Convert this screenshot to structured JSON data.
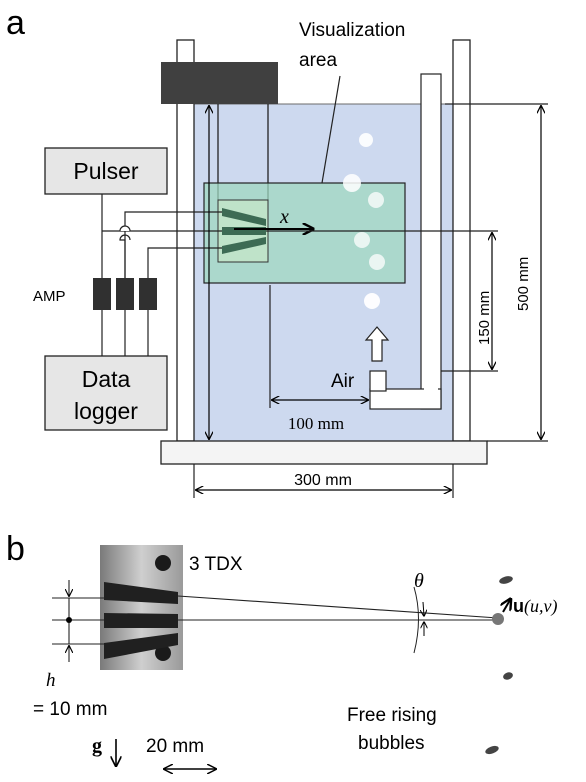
{
  "panel_a": {
    "letter": "a",
    "visualization_label_line1": "Visualization",
    "visualization_label_line2": "area",
    "pulser": "Pulser",
    "amp": "AMP",
    "data_logger_line1": "Data",
    "data_logger_line2": "logger",
    "x_axis": "x",
    "air": "Air",
    "dim_100": "100 mm",
    "dim_150": "150 mm",
    "dim_500": "500 mm",
    "dim_300": "300 mm"
  },
  "panel_b": {
    "letter": "b",
    "tdx": "3 TDX",
    "theta": "θ",
    "velocity_bold": "u",
    "velocity_args": "(u,v)",
    "h": "h",
    "h_value": "= 10 mm",
    "free_rising_line1": "Free rising",
    "free_rising_line2": "bubbles",
    "g": "g",
    "scale": "20 mm"
  },
  "colors": {
    "water": "#cdd9ef",
    "visualization_area": "#9fd7c0",
    "dark_block": "#404040",
    "box_fill": "#e6e6e6",
    "amp": "#303030"
  }
}
